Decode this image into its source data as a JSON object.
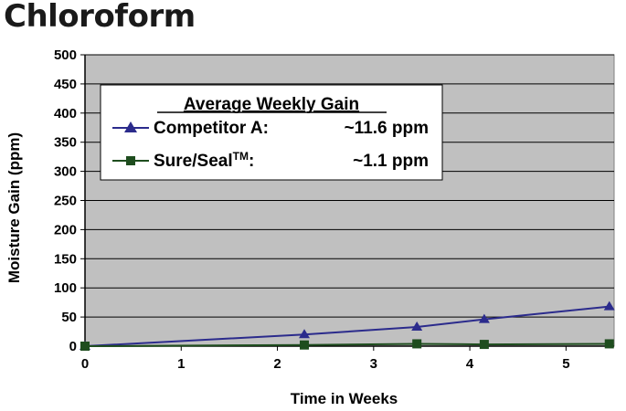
{
  "chart_data": {
    "type": "line",
    "title": "Chloroform",
    "xlabel": "Time in Weeks",
    "ylabel": "Moisture Gain (ppm)",
    "xlim": [
      0,
      5.5
    ],
    "ylim": [
      0,
      500
    ],
    "xticks": [
      "0",
      "1",
      "2",
      "3",
      "4",
      "5"
    ],
    "yticks": [
      "0",
      "50",
      "100",
      "150",
      "200",
      "250",
      "300",
      "350",
      "400",
      "450",
      "500"
    ],
    "grid": true,
    "legend": {
      "title": "Average Weekly Gain",
      "placement": "top-left",
      "entries": [
        {
          "label": "Competitor A:",
          "value": "~11.6 ppm"
        },
        {
          "label": "Sure/Seal",
          "superscript": "TM",
          "suffix": ":",
          "value": "~1.1 ppm"
        }
      ]
    },
    "series": [
      {
        "name": "Competitor A",
        "marker": "triangle",
        "color": "#2b2b8c",
        "x": [
          0,
          2.28,
          3.45,
          4.15,
          5.45
        ],
        "y": [
          0,
          20,
          33,
          46,
          68
        ]
      },
      {
        "name": "Sure/Seal",
        "marker": "square",
        "color": "#1e4d1e",
        "x": [
          0,
          2.28,
          3.45,
          4.15,
          5.45
        ],
        "y": [
          0,
          2,
          4,
          3,
          4
        ]
      }
    ],
    "plot_background": "#c0c0c0"
  }
}
